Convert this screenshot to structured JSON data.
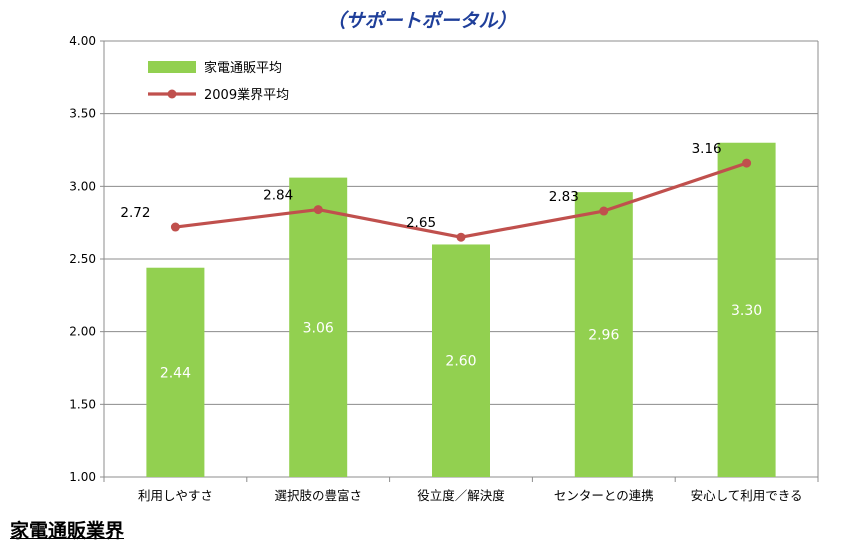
{
  "title": "（サポートポータル）",
  "footer": "家電通販業界",
  "chart_data": {
    "type": "bar",
    "categories": [
      "利用しやすさ",
      "選択肢の豊富さ",
      "役立度／解決度",
      "センターとの連携",
      "安心して利用できる"
    ],
    "series": [
      {
        "name": "家電通販平均",
        "kind": "bar",
        "color": "#92d050",
        "values": [
          2.44,
          3.06,
          2.6,
          2.96,
          3.3
        ],
        "labels": [
          "2.44",
          "3.06",
          "2.60",
          "2.96",
          "3.30"
        ]
      },
      {
        "name": "2009業界平均",
        "kind": "line",
        "color": "#c0504d",
        "values": [
          2.72,
          2.84,
          2.65,
          2.83,
          3.16
        ],
        "labels": [
          "2.72",
          "2.84",
          "2.65",
          "2.83",
          "3.16"
        ]
      }
    ],
    "ylim": [
      1.0,
      4.0
    ],
    "yticks": [
      "1.00",
      "1.50",
      "2.00",
      "2.50",
      "3.00",
      "3.50",
      "4.00"
    ],
    "grid": true,
    "legend_position": "top-left"
  }
}
